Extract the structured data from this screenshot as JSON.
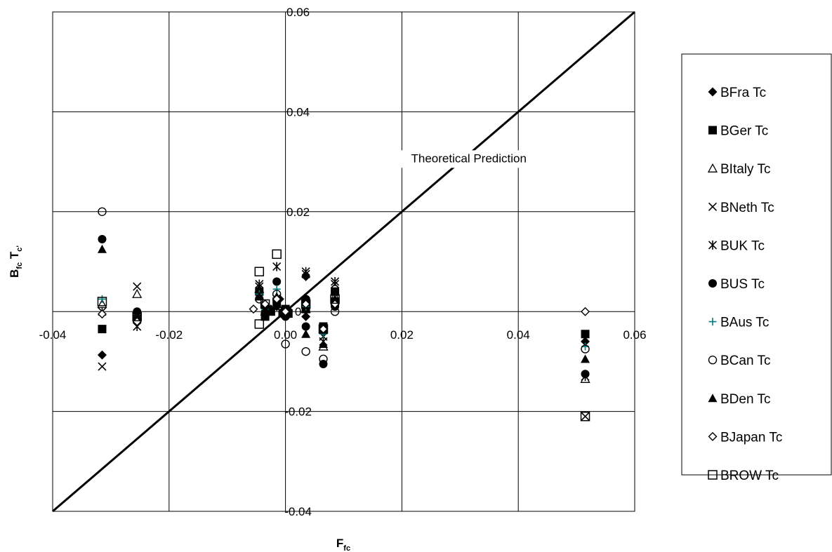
{
  "chart_data": {
    "type": "scatter",
    "xlabel": "F",
    "xlabel_sub": "fc",
    "ylabel_parts": [
      "B",
      "fc",
      " T",
      "c'"
    ],
    "xlim": [
      -0.04,
      0.06
    ],
    "ylim": [
      -0.04,
      0.06
    ],
    "x_ticks": [
      "-0.04",
      "-0.02",
      "0.00",
      "0.02",
      "0.04",
      "0.06"
    ],
    "y_ticks": [
      "-0.04",
      "-0.02",
      "0",
      "0.02",
      "0.04",
      "0.06"
    ],
    "grid": true,
    "legend_position": "right",
    "reference_line": {
      "label": "Theoretical Prediction",
      "from": [
        -0.04,
        -0.04
      ],
      "to": [
        0.06,
        0.06
      ]
    },
    "series": [
      {
        "name": "BFra Tc",
        "marker": "diamond-filled",
        "color": "#000000",
        "points": [
          [
            -0.0315,
            -0.0087
          ],
          [
            -0.0255,
            -0.0015
          ],
          [
            -0.0045,
            0.0035
          ],
          [
            -0.0035,
            -0.0003
          ],
          [
            -0.0025,
            0.0005
          ],
          [
            -0.0015,
            0.001
          ],
          [
            -0.001,
            0.0025
          ],
          [
            -0.0005,
            0.0
          ],
          [
            0.0,
            -0.0005
          ],
          [
            0.0005,
            0.0003
          ],
          [
            0.0035,
            0.007
          ],
          [
            0.0035,
            0.002
          ],
          [
            0.0035,
            -0.001
          ],
          [
            0.0065,
            -0.004
          ],
          [
            0.0085,
            0.0015
          ],
          [
            0.0515,
            -0.006
          ]
        ]
      },
      {
        "name": "BGer Tc",
        "marker": "square-filled",
        "color": "#000000",
        "points": [
          [
            -0.0315,
            -0.0035
          ],
          [
            -0.0255,
            -0.0015
          ],
          [
            -0.0045,
            0.004
          ],
          [
            -0.0035,
            -0.001
          ],
          [
            -0.0025,
            0.0
          ],
          [
            -0.0015,
            0.002
          ],
          [
            -0.0005,
            -0.0003
          ],
          [
            0.0,
            0.0005
          ],
          [
            0.0005,
            -0.0004
          ],
          [
            0.0035,
            0.002
          ],
          [
            0.0035,
            0.0005
          ],
          [
            0.0065,
            -0.003
          ],
          [
            0.0085,
            0.004
          ],
          [
            0.0085,
            0.002
          ],
          [
            0.0515,
            -0.0045
          ]
        ]
      },
      {
        "name": "BItaly Tc",
        "marker": "triangle-open",
        "color": "#000000",
        "points": [
          [
            -0.0315,
            0.0015
          ],
          [
            -0.0255,
            0.0035
          ],
          [
            -0.0045,
            0.0045
          ],
          [
            -0.0035,
            0.0
          ],
          [
            -0.0015,
            0.0015
          ],
          [
            0.0,
            -0.0005
          ],
          [
            0.0035,
            0.0005
          ],
          [
            0.0065,
            -0.007
          ],
          [
            0.0085,
            0.003
          ],
          [
            0.0515,
            -0.0135
          ]
        ]
      },
      {
        "name": "BNeth Tc",
        "marker": "x",
        "color": "#000000",
        "points": [
          [
            -0.0315,
            -0.011
          ],
          [
            -0.0255,
            0.005
          ],
          [
            -0.0045,
            0.005
          ],
          [
            -0.0035,
            0.0
          ],
          [
            -0.0015,
            0.0025
          ],
          [
            0.0,
            0.0
          ],
          [
            0.0035,
            0.0075
          ],
          [
            0.0065,
            -0.005
          ],
          [
            0.0085,
            0.0055
          ],
          [
            0.0515,
            -0.021
          ]
        ]
      },
      {
        "name": "BUK Tc",
        "marker": "asterisk",
        "color": "#000000",
        "points": [
          [
            -0.0315,
            0.0
          ],
          [
            -0.0255,
            -0.003
          ],
          [
            -0.0045,
            0.0055
          ],
          [
            -0.0035,
            -0.0005
          ],
          [
            -0.0015,
            0.009
          ],
          [
            0.0,
            0.0005
          ],
          [
            0.0035,
            0.008
          ],
          [
            0.0065,
            -0.006
          ],
          [
            0.0085,
            0.006
          ],
          [
            0.0515,
            -0.013
          ]
        ]
      },
      {
        "name": "BUS Tc",
        "marker": "circle-filled",
        "color": "#000000",
        "points": [
          [
            -0.0315,
            0.0145
          ],
          [
            -0.0255,
            0.0
          ],
          [
            -0.0045,
            0.004
          ],
          [
            -0.0035,
            0.001
          ],
          [
            -0.0015,
            0.006
          ],
          [
            0.0,
            -0.001
          ],
          [
            0.0035,
            0.0025
          ],
          [
            0.0035,
            -0.003
          ],
          [
            0.0065,
            -0.0105
          ],
          [
            0.0085,
            0.001
          ],
          [
            0.0515,
            -0.0125
          ]
        ]
      },
      {
        "name": "BAus Tc",
        "marker": "plus",
        "color": "#007b7b",
        "points": [
          [
            -0.0315,
            0.0025
          ],
          [
            -0.0255,
            -0.001
          ],
          [
            -0.0045,
            0.0035
          ],
          [
            -0.0035,
            0.0005
          ],
          [
            -0.0015,
            0.0045
          ],
          [
            0.0,
            0.0
          ],
          [
            0.0035,
            0.001
          ],
          [
            0.0065,
            -0.0045
          ],
          [
            0.0085,
            0.002
          ],
          [
            0.0515,
            -0.007
          ]
        ]
      },
      {
        "name": "BCan Tc",
        "marker": "circle-open",
        "color": "#000000",
        "points": [
          [
            -0.0315,
            0.02
          ],
          [
            -0.0255,
            -0.0005
          ],
          [
            -0.0045,
            0.0025
          ],
          [
            -0.0035,
            -0.0005
          ],
          [
            -0.0015,
            0.0035
          ],
          [
            0.0,
            -0.0065
          ],
          [
            0.0035,
            -0.008
          ],
          [
            0.0065,
            -0.0095
          ],
          [
            0.0085,
            0.0
          ],
          [
            0.0515,
            -0.0075
          ]
        ]
      },
      {
        "name": "BDen Tc",
        "marker": "triangle-filled",
        "color": "#000000",
        "points": [
          [
            -0.0315,
            0.0125
          ],
          [
            -0.0255,
            -0.001
          ],
          [
            -0.0045,
            0.003
          ],
          [
            -0.0035,
            0.0005
          ],
          [
            -0.0015,
            0.003
          ],
          [
            0.0,
            -0.0005
          ],
          [
            0.0035,
            -0.0045
          ],
          [
            0.0065,
            -0.0065
          ],
          [
            0.0085,
            0.0025
          ],
          [
            0.0515,
            -0.0095
          ]
        ]
      },
      {
        "name": "BJapan Tc",
        "marker": "diamond-open",
        "color": "#000000",
        "points": [
          [
            -0.0315,
            -0.0005
          ],
          [
            -0.0255,
            -0.002
          ],
          [
            -0.0055,
            0.0005
          ],
          [
            -0.0035,
            0.0015
          ],
          [
            -0.0015,
            0.0025
          ],
          [
            0.0,
            0.0
          ],
          [
            0.0035,
            0.0015
          ],
          [
            0.0065,
            -0.0035
          ],
          [
            0.0085,
            0.0015
          ],
          [
            0.0515,
            0.0
          ]
        ]
      },
      {
        "name": "BROW Tc",
        "marker": "square-open",
        "color": "#000000",
        "points": [
          [
            -0.0315,
            0.002
          ],
          [
            -0.0255,
            -0.001
          ],
          [
            -0.0045,
            0.008
          ],
          [
            -0.0045,
            -0.0025
          ],
          [
            -0.0035,
            0.0015
          ],
          [
            -0.0015,
            0.0115
          ],
          [
            0.0,
            0.0
          ],
          [
            0.0035,
            0.0015
          ],
          [
            0.0065,
            -0.0035
          ],
          [
            0.0085,
            0.0025
          ],
          [
            0.0515,
            -0.021
          ]
        ]
      }
    ]
  }
}
